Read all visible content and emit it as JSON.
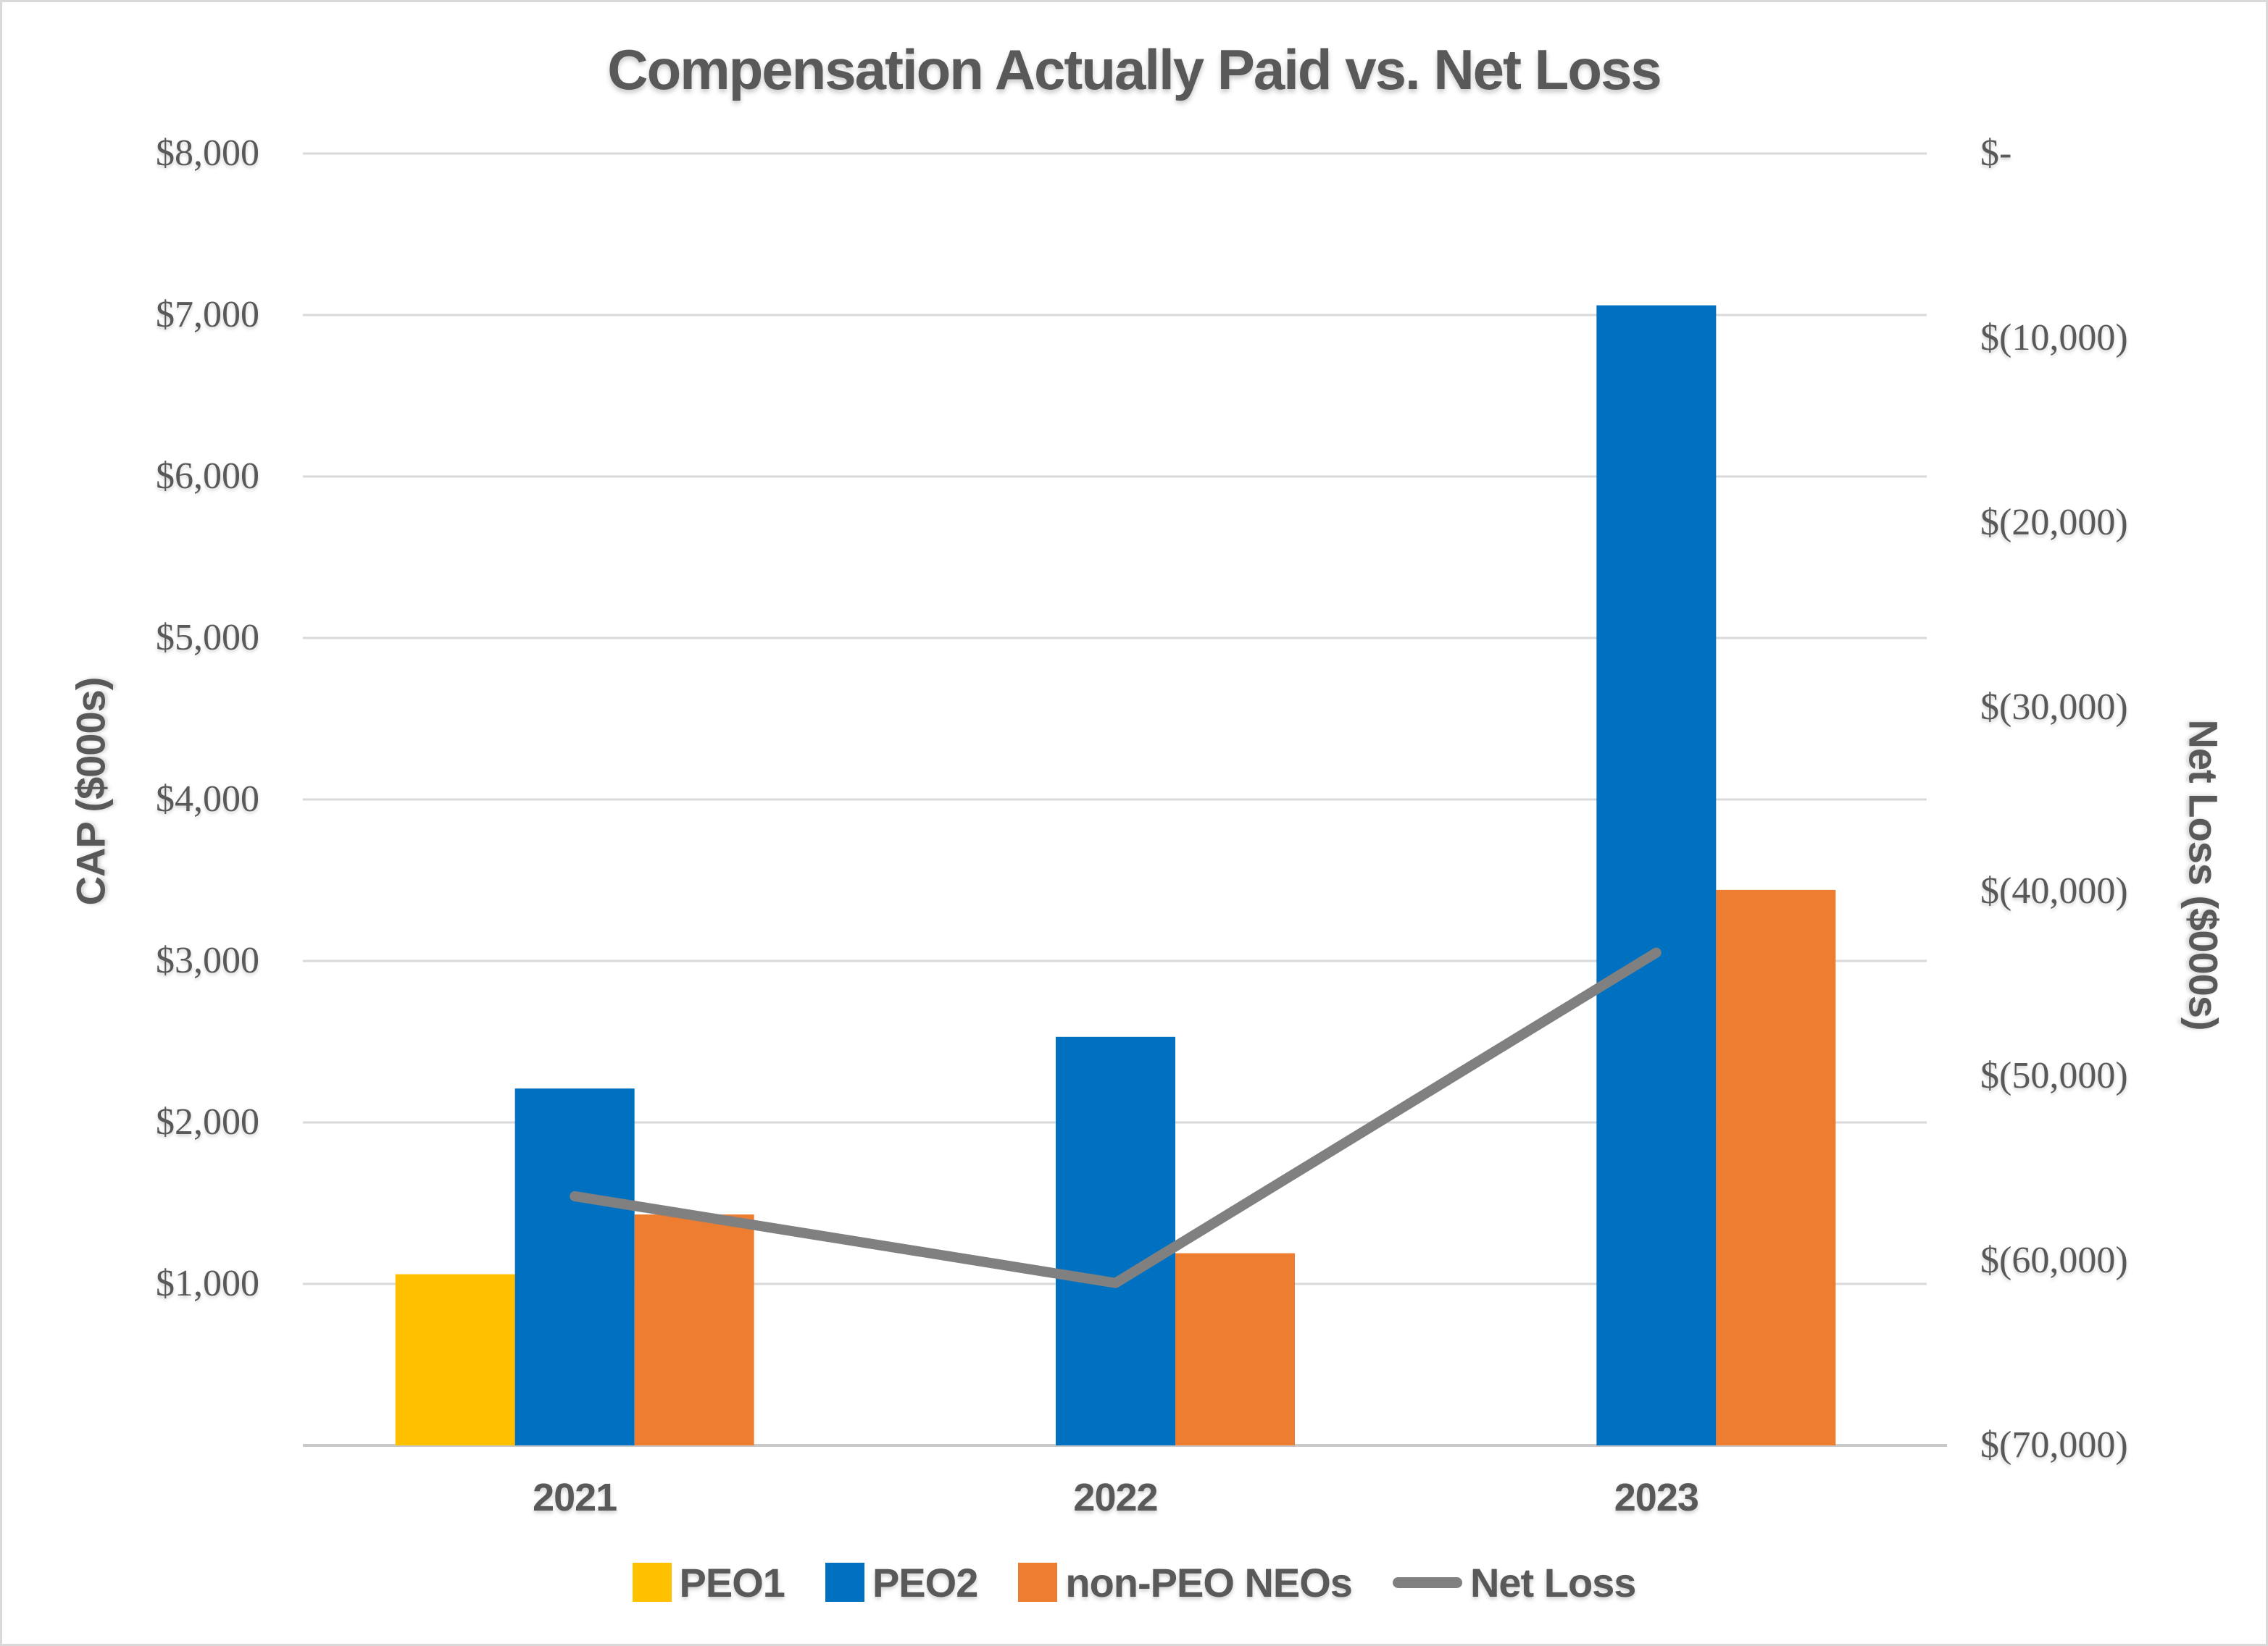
{
  "chart_data": {
    "type": "bar",
    "title": "Compensation Actually Paid vs. Net Loss",
    "categories": [
      "2021",
      "2022",
      "2023"
    ],
    "series": [
      {
        "name": "PEO1",
        "kind": "bar",
        "axis": "left",
        "color": "#FFC000",
        "values": [
          1060,
          null,
          null
        ]
      },
      {
        "name": "PEO2",
        "kind": "bar",
        "axis": "left",
        "color": "#0070C0",
        "values": [
          2210,
          2530,
          7060
        ]
      },
      {
        "name": "non-PEO NEOs",
        "kind": "bar",
        "axis": "left",
        "color": "#ED7D31",
        "values": [
          1430,
          1190,
          3440
        ]
      },
      {
        "name": "Net Loss",
        "kind": "line",
        "axis": "right",
        "color": "#808080",
        "values": [
          -56500,
          -61200,
          -43300
        ]
      }
    ],
    "left_axis": {
      "title": "CAP ($000s)",
      "min": 0,
      "max": 8000,
      "tick_step": 1000,
      "ticks": [
        {
          "value": 8000,
          "label": "$8,000"
        },
        {
          "value": 7000,
          "label": "$7,000"
        },
        {
          "value": 6000,
          "label": "$6,000"
        },
        {
          "value": 5000,
          "label": "$5,000"
        },
        {
          "value": 4000,
          "label": "$4,000"
        },
        {
          "value": 3000,
          "label": "$3,000"
        },
        {
          "value": 2000,
          "label": "$2,000"
        },
        {
          "value": 1000,
          "label": "$1,000"
        }
      ]
    },
    "right_axis": {
      "title": "Net Loss ($000s)",
      "max": 0,
      "min": -70000,
      "tick_step": -10000,
      "ticks": [
        {
          "value": 0,
          "label": "$-"
        },
        {
          "value": -10000,
          "label": "$(10,000)"
        },
        {
          "value": -20000,
          "label": "$(20,000)"
        },
        {
          "value": -30000,
          "label": "$(30,000)"
        },
        {
          "value": -40000,
          "label": "$(40,000)"
        },
        {
          "value": -50000,
          "label": "$(50,000)"
        },
        {
          "value": -60000,
          "label": "$(60,000)"
        },
        {
          "value": -70000,
          "label": "$(70,000)"
        }
      ]
    },
    "legend": {
      "position": "bottom",
      "items": [
        "PEO1",
        "PEO2",
        "non-PEO NEOs",
        "Net Loss"
      ]
    },
    "grid": true,
    "colors": {
      "text": "#595959",
      "gridline": "#D9D9D9",
      "baseline": "#C9C9C9",
      "peo1": "#FFC000",
      "peo2": "#0070C0",
      "non_peo_neos": "#ED7D31",
      "net_loss_line": "#808080"
    }
  }
}
